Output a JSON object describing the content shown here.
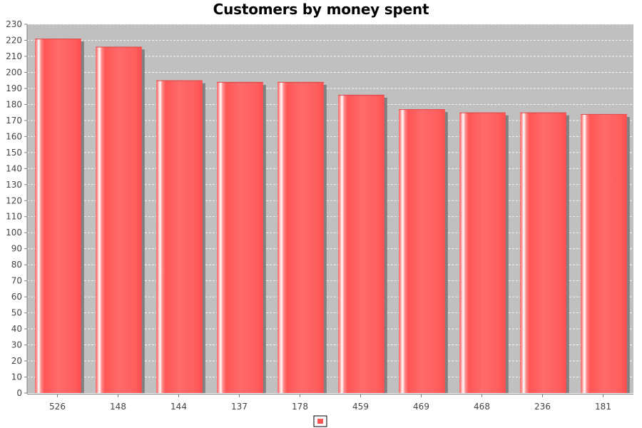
{
  "chart_data": {
    "type": "bar",
    "title": "Customers by money spent",
    "xlabel": "",
    "ylabel": "",
    "categories": [
      "526",
      "148",
      "144",
      "137",
      "178",
      "459",
      "469",
      "468",
      "236",
      "181"
    ],
    "series": [
      {
        "values": [
          221,
          216,
          195,
          194,
          194,
          186,
          177,
          175,
          175,
          174
        ]
      }
    ],
    "ylim": [
      0,
      230
    ],
    "ytick_step": 10,
    "grid": true,
    "legend": "bottom-center",
    "colors": {
      "bar": "#ff5555",
      "bar_highlight": "#ffffff",
      "bar_shadow": "#808080",
      "plot_background": "#c0c0c0",
      "grid": "#ffffff",
      "axis": "#808080"
    }
  }
}
